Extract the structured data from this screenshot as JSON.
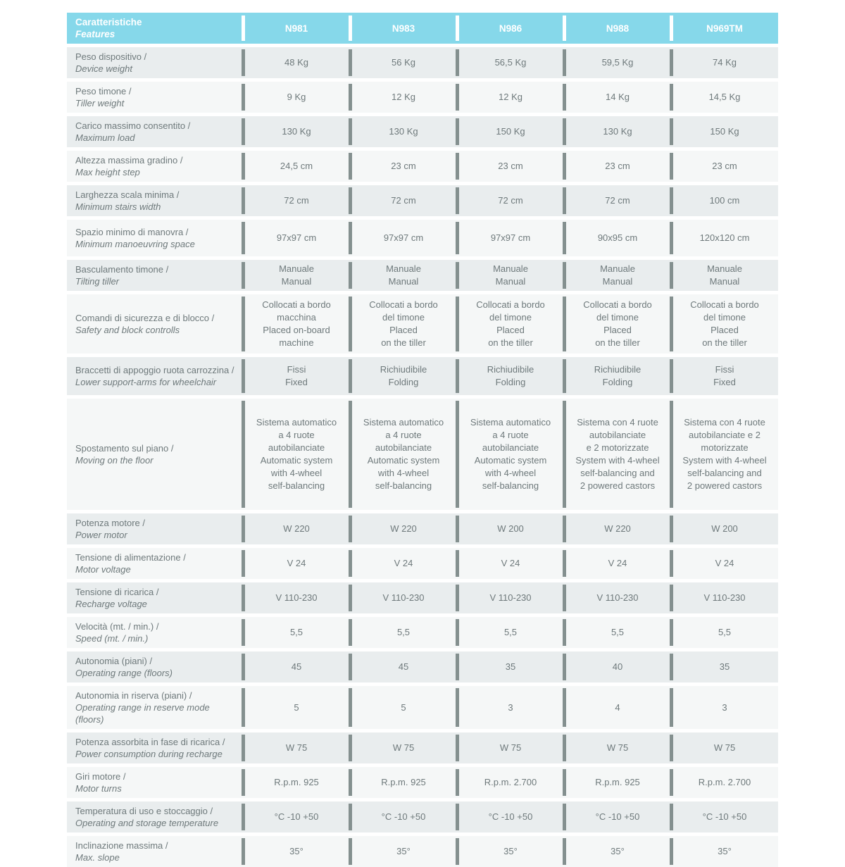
{
  "colors": {
    "header_bg": "#86d8ea",
    "header_text": "#ffffff",
    "row_alt_bg": "#e9edee",
    "row_base_bg": "#f5f7f7",
    "separator": "#84908f",
    "text": "#6e797b"
  },
  "header": {
    "feature_title_it": "Caratteristiche",
    "feature_title_en": "Features",
    "columns": [
      "N981",
      "N983",
      "N986",
      "N988",
      "N969TM"
    ]
  },
  "rows": [
    {
      "label_it": "Peso dispositivo /",
      "label_en": "Device weight",
      "values": [
        [
          "48 Kg"
        ],
        [
          "56 Kg"
        ],
        [
          "56,5 Kg"
        ],
        [
          "59,5 Kg"
        ],
        [
          "74 Kg"
        ]
      ]
    },
    {
      "label_it": "Peso timone /",
      "label_en": "Tiller weight",
      "values": [
        [
          "9 Kg"
        ],
        [
          "12 Kg"
        ],
        [
          "12 Kg"
        ],
        [
          "14 Kg"
        ],
        [
          "14,5 Kg"
        ]
      ]
    },
    {
      "label_it": "Carico massimo consentito /",
      "label_en": "Maximum load",
      "values": [
        [
          "130 Kg"
        ],
        [
          "130 Kg"
        ],
        [
          "150 Kg"
        ],
        [
          "130 Kg"
        ],
        [
          "150 Kg"
        ]
      ]
    },
    {
      "label_it": "Altezza massima gradino /",
      "label_en": "Max height step",
      "values": [
        [
          "24,5 cm"
        ],
        [
          "23 cm"
        ],
        [
          "23 cm"
        ],
        [
          "23 cm"
        ],
        [
          "23 cm"
        ]
      ]
    },
    {
      "label_it": "Larghezza scala minima /",
      "label_en": "Minimum stairs width",
      "values": [
        [
          "72 cm"
        ],
        [
          "72 cm"
        ],
        [
          "72 cm"
        ],
        [
          "72 cm"
        ],
        [
          "100 cm"
        ]
      ]
    },
    {
      "label_it": "Spazio minimo di manovra /",
      "label_en": "Minimum manoeuvring space",
      "values": [
        [
          "97x97 cm"
        ],
        [
          "97x97 cm"
        ],
        [
          "97x97 cm"
        ],
        [
          "90x95 cm"
        ],
        [
          "120x120 cm"
        ]
      ]
    },
    {
      "label_it": "Basculamento timone /",
      "label_en": "Tilting tiller",
      "values": [
        [
          "Manuale",
          "Manual"
        ],
        [
          "Manuale",
          "Manual"
        ],
        [
          "Manuale",
          "Manual"
        ],
        [
          "Manuale",
          "Manual"
        ],
        [
          "Manuale",
          "Manual"
        ]
      ]
    },
    {
      "label_it": "Comandi di sicurezza e di blocco /",
      "label_en": "Safety and block controlls",
      "values": [
        [
          "Collocati a bordo",
          "macchina",
          "Placed on-board",
          "machine"
        ],
        [
          "Collocati a bordo",
          "del timone",
          "Placed",
          "on the tiller"
        ],
        [
          "Collocati a bordo",
          "del timone",
          "Placed",
          "on the tiller"
        ],
        [
          "Collocati a bordo",
          "del timone",
          "Placed",
          "on the tiller"
        ],
        [
          "Collocati a bordo",
          "del timone",
          "Placed",
          "on the tiller"
        ]
      ]
    },
    {
      "label_it": "Braccetti di appoggio ruota carrozzina /",
      "label_en": "Lower support-arms for wheelchair",
      "values": [
        [
          "Fissi",
          "Fixed"
        ],
        [
          "Richiudibile",
          "Folding"
        ],
        [
          "Richiudibile",
          "Folding"
        ],
        [
          "Richiudibile",
          "Folding"
        ],
        [
          "Fissi",
          "Fixed"
        ]
      ]
    },
    {
      "label_it": "Spostamento sul piano /",
      "label_en": "Moving on the floor",
      "values": [
        [
          "Sistema automatico",
          "a 4 ruote",
          "autobilanciate",
          "Automatic system",
          "with 4-wheel",
          "self-balancing"
        ],
        [
          "Sistema automatico",
          "a 4 ruote",
          "autobilanciate",
          "Automatic system",
          "with 4-wheel",
          "self-balancing"
        ],
        [
          "Sistema automatico",
          "a 4 ruote",
          "autobilanciate",
          "Automatic system",
          "with 4-wheel",
          "self-balancing"
        ],
        [
          "Sistema con 4 ruote",
          "autobilanciate",
          "e 2 motorizzate",
          "System with 4-wheel",
          "self-balancing and",
          "2 powered castors"
        ],
        [
          "Sistema con 4 ruote",
          "autobilanciate e 2",
          "motorizzate",
          "System with 4-wheel",
          "self-balancing and",
          "2 powered castors"
        ]
      ]
    },
    {
      "label_it": "Potenza motore /",
      "label_en": "Power motor",
      "values": [
        [
          "W 220"
        ],
        [
          "W 220"
        ],
        [
          "W 200"
        ],
        [
          "W 220"
        ],
        [
          "W 200"
        ]
      ]
    },
    {
      "label_it": "Tensione di alimentazione /",
      "label_en": "Motor voltage",
      "values": [
        [
          "V 24"
        ],
        [
          "V 24"
        ],
        [
          "V 24"
        ],
        [
          "V 24"
        ],
        [
          "V 24"
        ]
      ]
    },
    {
      "label_it": "Tensione di ricarica /",
      "label_en": "Recharge voltage",
      "values": [
        [
          "V 110-230"
        ],
        [
          "V 110-230"
        ],
        [
          "V 110-230"
        ],
        [
          "V 110-230"
        ],
        [
          "V 110-230"
        ]
      ]
    },
    {
      "label_it": "Velocità (mt. / min.) /",
      "label_en": "Speed (mt. / min.)",
      "values": [
        [
          "5,5"
        ],
        [
          "5,5"
        ],
        [
          "5,5"
        ],
        [
          "5,5"
        ],
        [
          "5,5"
        ]
      ]
    },
    {
      "label_it": "Autonomia (piani) /",
      "label_en": "Operating range (floors)",
      "values": [
        [
          "45"
        ],
        [
          "45"
        ],
        [
          "35"
        ],
        [
          "40"
        ],
        [
          "35"
        ]
      ]
    },
    {
      "label_it": "Autonomia in riserva (piani) /",
      "label_en": "Operating range in reserve mode (floors)",
      "values": [
        [
          "5"
        ],
        [
          "5"
        ],
        [
          "3"
        ],
        [
          "4"
        ],
        [
          "3"
        ]
      ]
    },
    {
      "label_it": "Potenza assorbita in fase di ricarica /",
      "label_en": "Power consumption during recharge",
      "values": [
        [
          "W 75"
        ],
        [
          "W 75"
        ],
        [
          "W 75"
        ],
        [
          "W 75"
        ],
        [
          "W 75"
        ]
      ]
    },
    {
      "label_it": "Giri motore /",
      "label_en": "Motor turns",
      "values": [
        [
          "R.p.m. 925"
        ],
        [
          "R.p.m. 925"
        ],
        [
          "R.p.m. 2.700"
        ],
        [
          "R.p.m. 925"
        ],
        [
          "R.p.m. 2.700"
        ]
      ]
    },
    {
      "label_it": "Temperatura di uso e stoccaggio /",
      "label_en": "Operating and storage temperature",
      "values": [
        [
          "°C -10 +50"
        ],
        [
          "°C -10 +50"
        ],
        [
          "°C -10 +50"
        ],
        [
          "°C -10 +50"
        ],
        [
          "°C -10 +50"
        ]
      ]
    },
    {
      "label_it": "Inclinazione massima /",
      "label_en": "Max. slope",
      "values": [
        [
          "35°"
        ],
        [
          "35°"
        ],
        [
          "35°"
        ],
        [
          "35°"
        ],
        [
          "35°"
        ]
      ]
    }
  ]
}
